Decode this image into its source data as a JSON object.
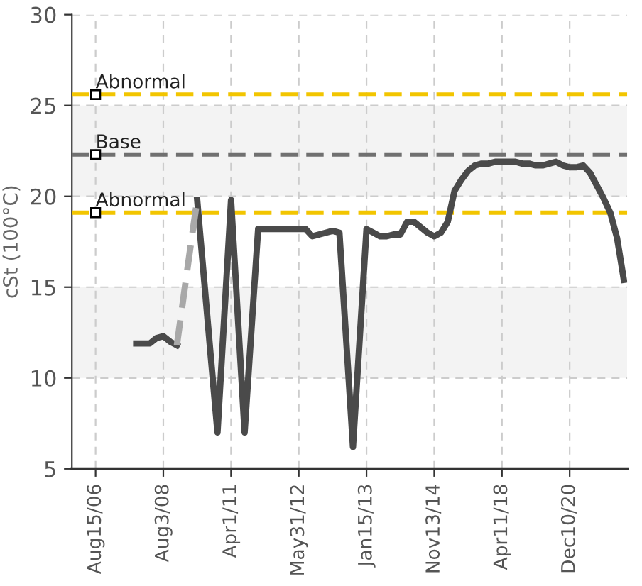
{
  "chart_data": {
    "type": "line",
    "ylabel": "cSt (100°C)",
    "categories": [
      "Aug15/06",
      null,
      null,
      null,
      null,
      null,
      null,
      null,
      null,
      null,
      "Aug3/08",
      null,
      null,
      null,
      null,
      null,
      null,
      null,
      null,
      null,
      "Apr1/11",
      null,
      null,
      null,
      null,
      null,
      null,
      null,
      null,
      null,
      "May31/12",
      null,
      null,
      null,
      null,
      null,
      null,
      null,
      null,
      null,
      "Jan15/13",
      null,
      null,
      null,
      null,
      null,
      null,
      null,
      null,
      null,
      "Nov13/14",
      null,
      null,
      null,
      null,
      null,
      null,
      null,
      null,
      null,
      "Apr11/18",
      null,
      null,
      null,
      null,
      null,
      null,
      null,
      null,
      null,
      "Dec10/20",
      null,
      null,
      null,
      null,
      null,
      null,
      null,
      null
    ],
    "ylim": [
      5,
      30
    ],
    "yticks": [
      5,
      10,
      15,
      20,
      25,
      30
    ],
    "grid": true,
    "marker": "none",
    "series": [
      {
        "color": "#4a4a4a",
        "line_style": "solid",
        "values": [
          null,
          null,
          null,
          null,
          null,
          null,
          11.9,
          11.9,
          11.9,
          12.2,
          12.3,
          12.0,
          11.8,
          null,
          null,
          19.8,
          15.5,
          11.2,
          7.0,
          13.4,
          19.8,
          13.4,
          7.0,
          12.6,
          18.2,
          18.2,
          18.2,
          18.2,
          18.2,
          18.2,
          18.2,
          18.2,
          17.8,
          17.9,
          18.0,
          18.1,
          18.0,
          12.1,
          6.2,
          12.2,
          18.2,
          18.0,
          17.8,
          17.8,
          17.9,
          17.9,
          18.6,
          18.6,
          18.3,
          18.0,
          17.8,
          18.0,
          18.6,
          20.3,
          20.9,
          21.4,
          21.7,
          21.8,
          21.8,
          21.9,
          21.9,
          21.9,
          21.9,
          21.8,
          21.8,
          21.7,
          21.7,
          21.8,
          21.9,
          21.7,
          21.6,
          21.6,
          21.7,
          21.3,
          20.6,
          19.9,
          19.1,
          17.7,
          15.4
        ]
      },
      {
        "color": "#a8a8a8",
        "line_style": "dashed",
        "values": [
          null,
          null,
          null,
          null,
          null,
          null,
          null,
          null,
          null,
          null,
          null,
          null,
          11.8,
          14.5,
          17.2,
          19.8,
          null,
          null,
          null,
          null,
          null,
          null,
          null,
          null,
          null,
          null,
          null,
          null,
          null,
          null,
          null,
          null,
          null,
          null,
          null,
          null,
          null,
          null,
          null,
          null,
          null,
          null,
          null,
          null,
          null,
          null,
          null,
          null,
          null,
          null,
          null,
          null,
          null,
          null,
          null,
          null,
          null,
          null,
          null,
          null,
          null,
          null,
          null,
          null,
          null,
          null,
          null,
          null,
          null,
          null,
          null,
          null,
          null,
          null,
          null,
          null,
          null,
          null,
          null
        ]
      }
    ],
    "ref_lines": [
      {
        "axis": "y",
        "value": 25.6,
        "label": "Abnormal",
        "color": "#f2c500",
        "line_style": "dashed"
      },
      {
        "axis": "y",
        "value": 22.3,
        "label": "Base",
        "color": "#707070",
        "line_style": "dashed"
      },
      {
        "axis": "y",
        "value": 19.1,
        "label": "Abnormal",
        "color": "#f2c500",
        "line_style": "dashed"
      }
    ],
    "bands": [
      {
        "axis": "y",
        "from": 20,
        "to": 25,
        "color": "#f3f3f3"
      },
      {
        "axis": "y",
        "from": 10,
        "to": 15,
        "color": "#f3f3f3"
      }
    ]
  }
}
